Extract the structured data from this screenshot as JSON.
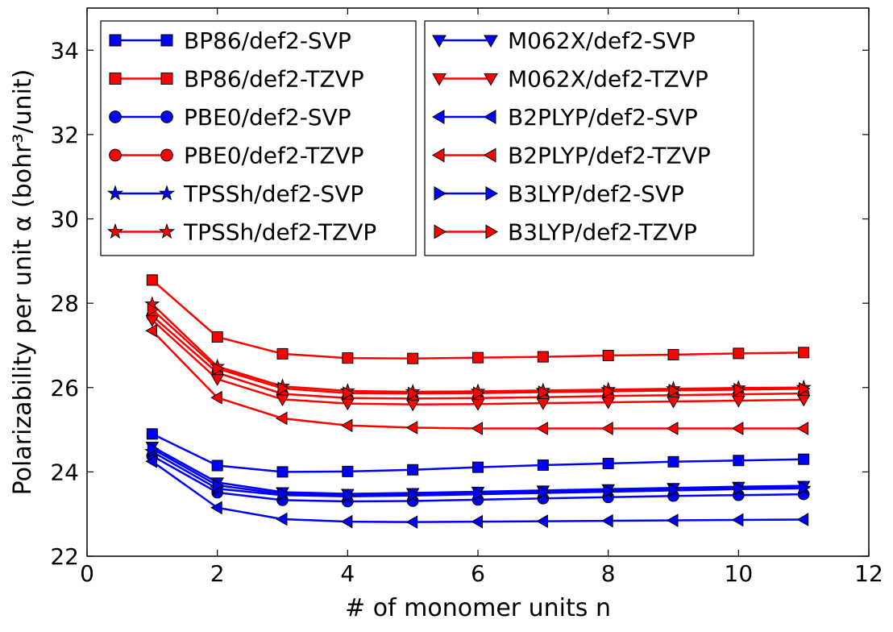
{
  "chart_data": {
    "type": "line",
    "xlabel": "# of monomer units n",
    "ylabel": "Polarizability per unit α (bohr³/unit)",
    "xlim": [
      0,
      12
    ],
    "ylim": [
      22,
      35
    ],
    "xticks": [
      0,
      2,
      4,
      6,
      8,
      10,
      12
    ],
    "yticks": [
      22,
      24,
      26,
      28,
      30,
      32,
      34
    ],
    "grid": false,
    "legend_placement": "top",
    "x": [
      1,
      2,
      3,
      4,
      5,
      6,
      7,
      8,
      9,
      10,
      11
    ],
    "series": [
      {
        "name": "BP86/def2-SVP",
        "color": "#0000ff",
        "marker": "square",
        "values": [
          24.9,
          24.15,
          24.0,
          24.01,
          24.05,
          24.11,
          24.16,
          24.2,
          24.24,
          24.27,
          24.3
        ]
      },
      {
        "name": "BP86/def2-TZVP",
        "color": "#ff0000",
        "marker": "square",
        "values": [
          28.55,
          27.2,
          26.8,
          26.7,
          26.69,
          26.71,
          26.73,
          26.76,
          26.78,
          26.81,
          26.83
        ]
      },
      {
        "name": "PBE0/def2-SVP",
        "color": "#0000ff",
        "marker": "circle",
        "values": [
          24.38,
          23.51,
          23.33,
          23.3,
          23.31,
          23.34,
          23.37,
          23.4,
          23.43,
          23.45,
          23.47
        ]
      },
      {
        "name": "PBE0/def2-TZVP",
        "color": "#ff0000",
        "marker": "circle",
        "values": [
          27.7,
          26.35,
          25.85,
          25.75,
          25.74,
          25.75,
          25.77,
          25.8,
          25.82,
          25.84,
          25.86
        ]
      },
      {
        "name": "TPSSh/def2-SVP",
        "color": "#0000ff",
        "marker": "star",
        "values": [
          24.48,
          23.6,
          23.45,
          23.42,
          23.44,
          23.47,
          23.5,
          23.53,
          23.56,
          23.59,
          23.61
        ]
      },
      {
        "name": "TPSSh/def2-TZVP",
        "color": "#ff0000",
        "marker": "star",
        "values": [
          27.98,
          26.5,
          26.03,
          25.92,
          25.9,
          25.91,
          25.93,
          25.95,
          25.97,
          25.99,
          26.0
        ]
      },
      {
        "name": "M062X/def2-SVP",
        "color": "#0000ff",
        "marker": "triangle-down",
        "values": [
          24.6,
          23.75,
          23.52,
          23.48,
          23.5,
          23.53,
          23.56,
          23.59,
          23.62,
          23.65,
          23.67
        ]
      },
      {
        "name": "M062X/def2-TZVP",
        "color": "#ff0000",
        "marker": "triangle-down",
        "values": [
          27.6,
          26.2,
          25.72,
          25.62,
          25.6,
          25.61,
          25.63,
          25.65,
          25.67,
          25.69,
          25.71
        ]
      },
      {
        "name": "B2PLYP/def2-SVP",
        "color": "#0000ff",
        "marker": "triangle-left",
        "values": [
          24.25,
          23.15,
          22.88,
          22.82,
          22.81,
          22.82,
          22.83,
          22.84,
          22.85,
          22.86,
          22.87
        ]
      },
      {
        "name": "B2PLYP/def2-TZVP",
        "color": "#ff0000",
        "marker": "triangle-left",
        "values": [
          27.35,
          25.76,
          25.27,
          25.1,
          25.05,
          25.03,
          25.03,
          25.03,
          25.03,
          25.03,
          25.03
        ]
      },
      {
        "name": "B3LYP/def2-SVP",
        "color": "#0000ff",
        "marker": "triangle-right",
        "values": [
          24.55,
          23.68,
          23.48,
          23.45,
          23.46,
          23.49,
          23.52,
          23.55,
          23.58,
          23.61,
          23.63
        ]
      },
      {
        "name": "B3LYP/def2-TZVP",
        "color": "#ff0000",
        "marker": "triangle-right",
        "values": [
          27.85,
          26.45,
          25.98,
          25.87,
          25.86,
          25.87,
          25.89,
          25.91,
          25.93,
          25.95,
          25.97
        ]
      }
    ]
  }
}
